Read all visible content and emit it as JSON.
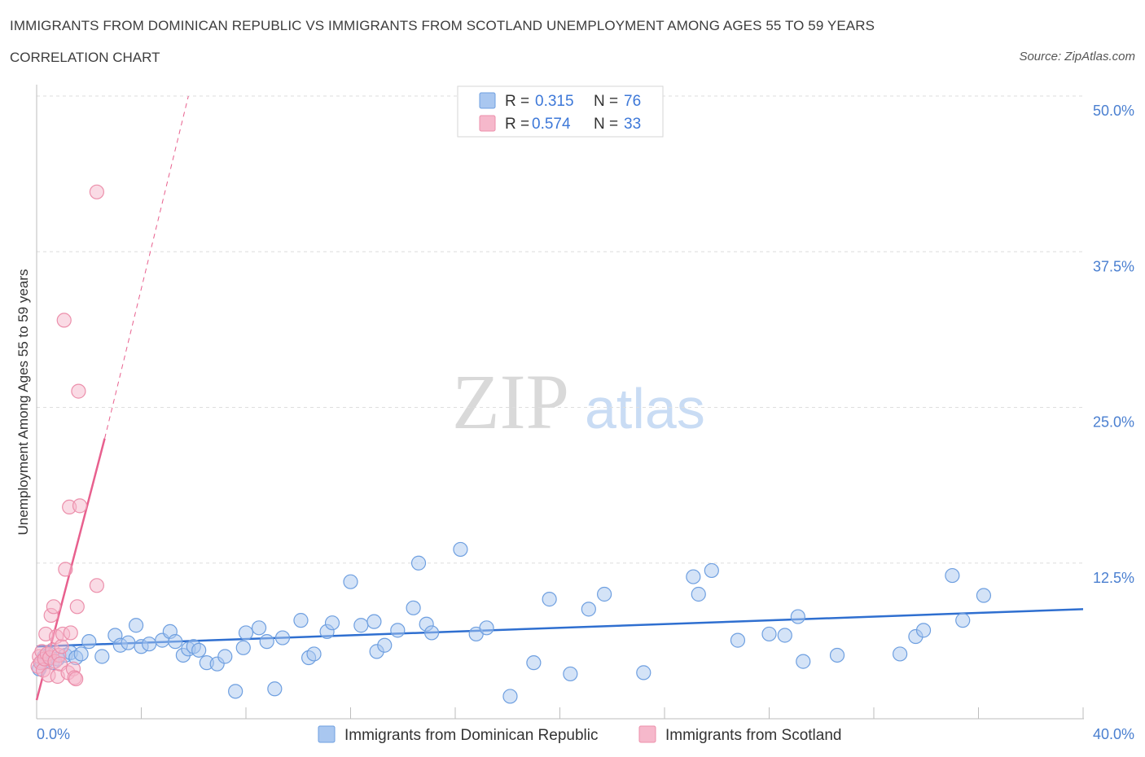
{
  "header": {
    "title": "IMMIGRANTS FROM DOMINICAN REPUBLIC VS IMMIGRANTS FROM SCOTLAND UNEMPLOYMENT AMONG AGES 55 TO 59 YEARS",
    "subtitle": "CORRELATION CHART",
    "source": "Source: ZipAtlas.com"
  },
  "watermark": {
    "zip": "ZIP",
    "atlas": "atlas"
  },
  "legend": {
    "series1": {
      "r_label": "R =",
      "r_value": "0.315",
      "n_label": "N =",
      "n_value": "76"
    },
    "series2": {
      "r_label": "R =",
      "r_value": "0.574",
      "n_label": "N =",
      "n_value": "33"
    }
  },
  "colors": {
    "blue_fill": "#a9c7f0",
    "blue_stroke": "#6e9fe0",
    "blue_line": "#2f6fd0",
    "pink_fill": "#f6b8cb",
    "pink_stroke": "#ec8fab",
    "pink_line": "#e8608e",
    "grid": "#dedede",
    "tick_text": "#4a7fd0"
  },
  "chart_data": {
    "type": "scatter",
    "title": "IMMIGRANTS FROM DOMINICAN REPUBLIC VS IMMIGRANTS FROM SCOTLAND UNEMPLOYMENT AMONG AGES 55 TO 59 YEARS",
    "xlabel": "",
    "ylabel": "Unemployment Among Ages 55 to 59 years",
    "xlim": [
      0,
      40
    ],
    "ylim": [
      0,
      50
    ],
    "x_tick_labels": [
      "0.0%",
      "40.0%"
    ],
    "y_ticks": [
      12.5,
      25.0,
      37.5,
      50.0
    ],
    "y_tick_labels": [
      "12.5%",
      "25.0%",
      "37.5%",
      "50.0%"
    ],
    "grid": true,
    "legend_position": "top-center",
    "series": [
      {
        "name": "Immigrants from Dominican Republic",
        "color": "blue",
        "R": 0.315,
        "N": 76,
        "trend": {
          "x": [
            0,
            40
          ],
          "y": [
            5.8,
            8.8
          ],
          "style": "solid"
        },
        "points": [
          [
            0.1,
            4.0
          ],
          [
            0.2,
            4.6
          ],
          [
            0.3,
            5.0
          ],
          [
            0.4,
            4.7
          ],
          [
            0.5,
            5.2
          ],
          [
            0.6,
            4.5
          ],
          [
            0.8,
            4.8
          ],
          [
            1.1,
            5.1
          ],
          [
            1.3,
            5.3
          ],
          [
            1.5,
            4.9
          ],
          [
            1.7,
            5.2
          ],
          [
            2.0,
            6.2
          ],
          [
            2.5,
            5.0
          ],
          [
            3.0,
            6.7
          ],
          [
            3.2,
            5.9
          ],
          [
            3.5,
            6.1
          ],
          [
            3.8,
            7.5
          ],
          [
            4.0,
            5.8
          ],
          [
            4.3,
            6.0
          ],
          [
            4.8,
            6.3
          ],
          [
            5.1,
            7.0
          ],
          [
            5.3,
            6.2
          ],
          [
            5.6,
            5.1
          ],
          [
            5.8,
            5.6
          ],
          [
            6.0,
            5.8
          ],
          [
            6.2,
            5.5
          ],
          [
            6.5,
            4.5
          ],
          [
            6.9,
            4.4
          ],
          [
            7.2,
            5.0
          ],
          [
            7.6,
            2.2
          ],
          [
            7.9,
            5.7
          ],
          [
            8.0,
            6.9
          ],
          [
            8.5,
            7.3
          ],
          [
            8.8,
            6.2
          ],
          [
            9.1,
            2.4
          ],
          [
            9.4,
            6.5
          ],
          [
            10.1,
            7.9
          ],
          [
            10.4,
            4.9
          ],
          [
            10.6,
            5.2
          ],
          [
            11.1,
            7.0
          ],
          [
            11.3,
            7.7
          ],
          [
            12.0,
            11.0
          ],
          [
            12.4,
            7.5
          ],
          [
            12.9,
            7.8
          ],
          [
            13.0,
            5.4
          ],
          [
            13.3,
            5.9
          ],
          [
            13.8,
            7.1
          ],
          [
            14.4,
            8.9
          ],
          [
            14.6,
            12.5
          ],
          [
            14.9,
            7.6
          ],
          [
            15.1,
            6.9
          ],
          [
            16.2,
            13.6
          ],
          [
            16.8,
            6.8
          ],
          [
            17.2,
            7.3
          ],
          [
            18.1,
            1.8
          ],
          [
            19.0,
            4.5
          ],
          [
            19.6,
            9.6
          ],
          [
            20.4,
            3.6
          ],
          [
            21.1,
            8.8
          ],
          [
            21.7,
            10.0
          ],
          [
            23.2,
            3.7
          ],
          [
            25.1,
            11.4
          ],
          [
            25.3,
            10.0
          ],
          [
            25.8,
            11.9
          ],
          [
            26.8,
            6.3
          ],
          [
            28.0,
            6.8
          ],
          [
            28.6,
            6.7
          ],
          [
            29.1,
            8.2
          ],
          [
            29.3,
            4.6
          ],
          [
            30.6,
            5.1
          ],
          [
            33.0,
            5.2
          ],
          [
            33.6,
            6.6
          ],
          [
            33.9,
            7.1
          ],
          [
            35.0,
            11.5
          ],
          [
            35.4,
            7.9
          ],
          [
            36.2,
            9.9
          ]
        ]
      },
      {
        "name": "Immigrants from Scotland",
        "color": "pink",
        "R": 0.574,
        "N": 33,
        "trend": {
          "x": [
            0,
            2.6
          ],
          "y": [
            1.5,
            22.5
          ],
          "style": "solid",
          "extended": {
            "x": [
              2.6,
              5.8
            ],
            "y": [
              22.5,
              50.0
            ],
            "style": "dashed"
          }
        },
        "points": [
          [
            0.05,
            4.2
          ],
          [
            0.1,
            5.0
          ],
          [
            0.15,
            4.5
          ],
          [
            0.2,
            5.4
          ],
          [
            0.25,
            3.9
          ],
          [
            0.3,
            4.8
          ],
          [
            0.35,
            6.8
          ],
          [
            0.4,
            5.2
          ],
          [
            0.45,
            3.5
          ],
          [
            0.5,
            4.9
          ],
          [
            0.55,
            8.3
          ],
          [
            0.6,
            5.5
          ],
          [
            0.65,
            9.0
          ],
          [
            0.7,
            4.6
          ],
          [
            0.75,
            6.6
          ],
          [
            0.8,
            3.4
          ],
          [
            0.85,
            5.1
          ],
          [
            0.9,
            4.4
          ],
          [
            0.95,
            5.8
          ],
          [
            1.0,
            6.8
          ],
          [
            1.05,
            32.0
          ],
          [
            1.1,
            12.0
          ],
          [
            1.2,
            3.7
          ],
          [
            1.25,
            17.0
          ],
          [
            1.3,
            6.9
          ],
          [
            1.4,
            4.0
          ],
          [
            1.45,
            3.3
          ],
          [
            1.55,
            9.0
          ],
          [
            1.6,
            26.3
          ],
          [
            1.65,
            17.1
          ],
          [
            2.3,
            10.7
          ],
          [
            2.3,
            42.3
          ],
          [
            1.5,
            3.2
          ]
        ]
      }
    ]
  },
  "bottom_legend": {
    "item1": "Immigrants from Dominican Republic",
    "item2": "Immigrants from Scotland"
  }
}
